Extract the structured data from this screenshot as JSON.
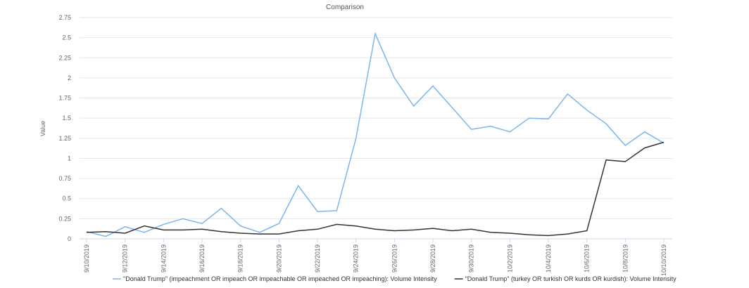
{
  "chart_data": {
    "type": "line",
    "title": "Comparison",
    "y_label": "Value",
    "categories": [
      "9/10/2019",
      null,
      "9/12/2019",
      null,
      "9/14/2019",
      null,
      "9/16/2019",
      null,
      "9/18/2019",
      null,
      "9/20/2019",
      null,
      "9/22/2019",
      null,
      "9/24/2019",
      null,
      "9/26/2019",
      null,
      "9/28/2019",
      null,
      "9/30/2019",
      null,
      "10/2/2019",
      null,
      "10/4/2019",
      null,
      "10/6/2019",
      null,
      "10/8/2019",
      null,
      "10/10/2019"
    ],
    "series": [
      {
        "name": "\"Donald Trump\" (impeachment OR impeach OR impeachable OR impeached OR impeaching): Volume Intensity",
        "color": "#7cb5ec",
        "values": [
          0.09,
          0.03,
          0.15,
          0.08,
          0.18,
          0.25,
          0.19,
          0.38,
          0.16,
          0.08,
          0.19,
          0.66,
          0.34,
          0.35,
          1.25,
          2.55,
          2.0,
          1.65,
          1.9,
          1.63,
          1.36,
          1.4,
          1.33,
          1.5,
          1.49,
          1.8,
          1.6,
          1.43,
          1.16,
          1.33,
          1.19
        ]
      },
      {
        "name": "\"Donald Trump\" (turkey OR turkish OR kurds OR kurdish): Volume Intensity",
        "color": "#333333",
        "values": [
          0.08,
          0.09,
          0.07,
          0.16,
          0.11,
          0.11,
          0.12,
          0.09,
          0.07,
          0.06,
          0.06,
          0.1,
          0.12,
          0.18,
          0.16,
          0.12,
          0.1,
          0.11,
          0.13,
          0.1,
          0.12,
          0.08,
          0.07,
          0.05,
          0.04,
          0.06,
          0.1,
          0.98,
          0.96,
          1.13,
          1.2
        ]
      }
    ],
    "ylim": [
      0,
      2.75
    ],
    "yticks": [
      0,
      0.25,
      0.5,
      0.75,
      1,
      1.25,
      1.5,
      1.75,
      2,
      2.25,
      2.5,
      2.75
    ],
    "grid": true,
    "legend": "bottom"
  }
}
